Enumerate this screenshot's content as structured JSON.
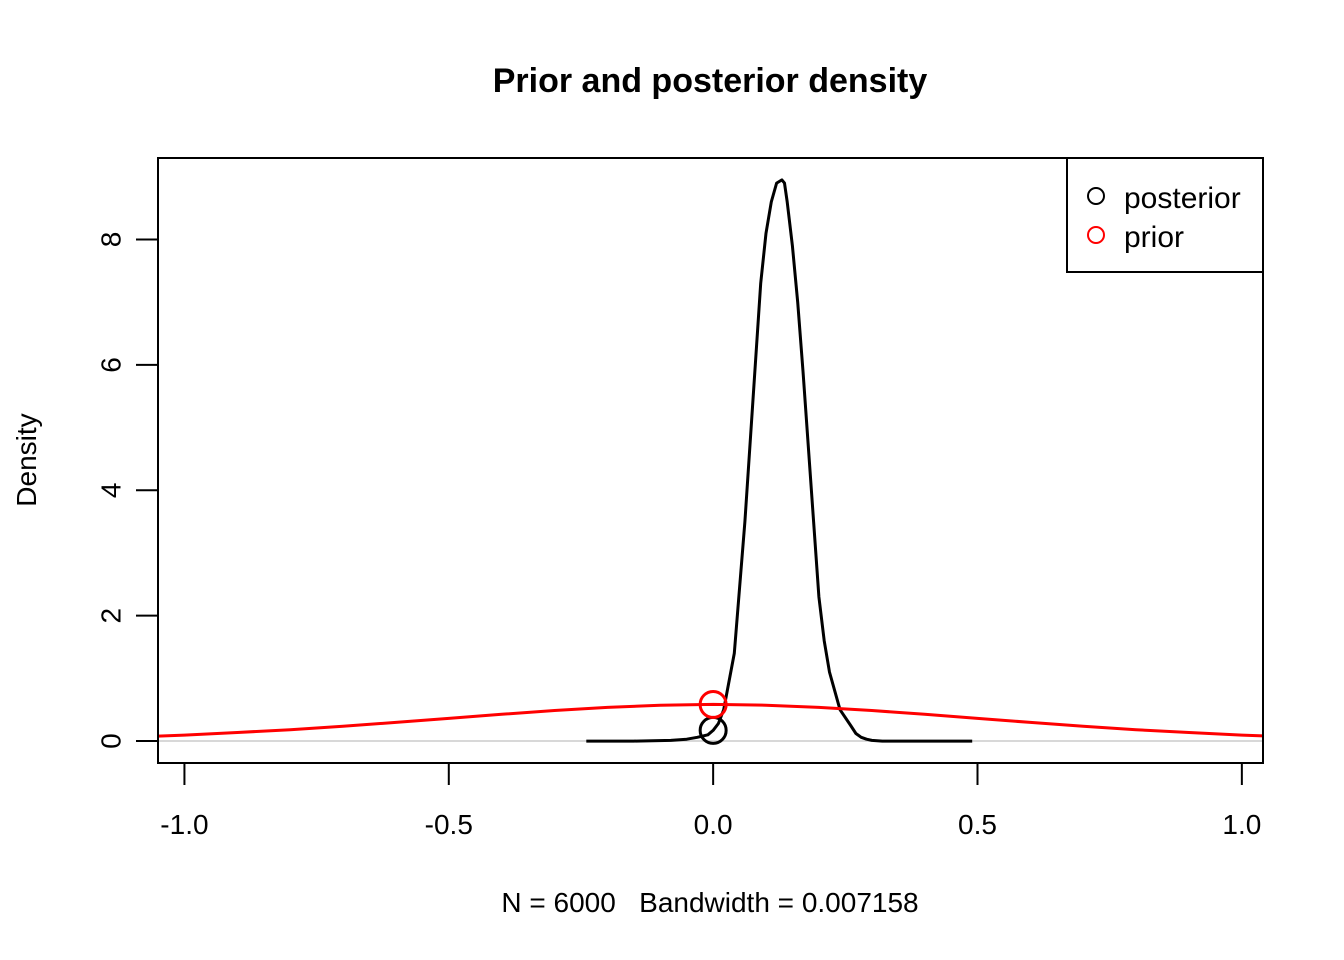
{
  "chart_data": {
    "type": "line",
    "title": "Prior and posterior density",
    "xlabel": "N = 6000   Bandwidth = 0.007158",
    "ylabel": "Density",
    "xlim": [
      -1.05,
      1.04
    ],
    "ylim": [
      -0.35,
      9.3
    ],
    "x_ticks": [
      -1.0,
      -0.5,
      0.0,
      0.5,
      1.0
    ],
    "x_tick_labels": [
      "-1.0",
      "-0.5",
      "0.0",
      "0.5",
      "1.0"
    ],
    "y_ticks": [
      0,
      2,
      4,
      6,
      8
    ],
    "y_tick_labels": [
      "0",
      "2",
      "4",
      "6",
      "8"
    ],
    "grid": false,
    "baseline": 0,
    "legend": {
      "position": "top-right",
      "entries": [
        {
          "label": "posterior",
          "color": "#000000",
          "marker": "circle"
        },
        {
          "label": "prior",
          "color": "#ff0000",
          "marker": "circle"
        }
      ]
    },
    "series": [
      {
        "name": "posterior",
        "color": "#000000",
        "x": [
          -0.24,
          -0.15,
          -0.08,
          -0.05,
          -0.03,
          -0.01,
          0.0,
          0.01,
          0.02,
          0.04,
          0.06,
          0.075,
          0.09,
          0.1,
          0.11,
          0.12,
          0.13,
          0.135,
          0.14,
          0.15,
          0.16,
          0.17,
          0.18,
          0.19,
          0.2,
          0.21,
          0.22,
          0.24,
          0.26,
          0.27,
          0.28,
          0.29,
          0.3,
          0.32,
          0.4,
          0.49
        ],
        "y": [
          0.0,
          0.0,
          0.01,
          0.03,
          0.06,
          0.1,
          0.17,
          0.28,
          0.5,
          1.4,
          3.5,
          5.4,
          7.3,
          8.1,
          8.6,
          8.9,
          8.95,
          8.9,
          8.6,
          7.9,
          7.0,
          5.9,
          4.7,
          3.5,
          2.3,
          1.6,
          1.1,
          0.5,
          0.25,
          0.12,
          0.06,
          0.03,
          0.01,
          0.0,
          0.0,
          0.0
        ]
      },
      {
        "name": "prior",
        "color": "#ff0000",
        "x": [
          -1.05,
          -1.0,
          -0.9,
          -0.8,
          -0.7,
          -0.6,
          -0.5,
          -0.4,
          -0.3,
          -0.2,
          -0.1,
          0.0,
          0.1,
          0.2,
          0.3,
          0.4,
          0.5,
          0.6,
          0.7,
          0.8,
          0.9,
          1.0,
          1.04
        ],
        "y": [
          0.079,
          0.095,
          0.136,
          0.181,
          0.236,
          0.298,
          0.362,
          0.427,
          0.487,
          0.537,
          0.572,
          0.584,
          0.572,
          0.537,
          0.487,
          0.427,
          0.362,
          0.298,
          0.236,
          0.181,
          0.136,
          0.095,
          0.083
        ]
      }
    ],
    "points": [
      {
        "series": "posterior",
        "x": 0.0,
        "y": 0.17,
        "color": "#000000"
      },
      {
        "series": "prior",
        "x": 0.0,
        "y": 0.584,
        "color": "#ff0000"
      }
    ]
  }
}
